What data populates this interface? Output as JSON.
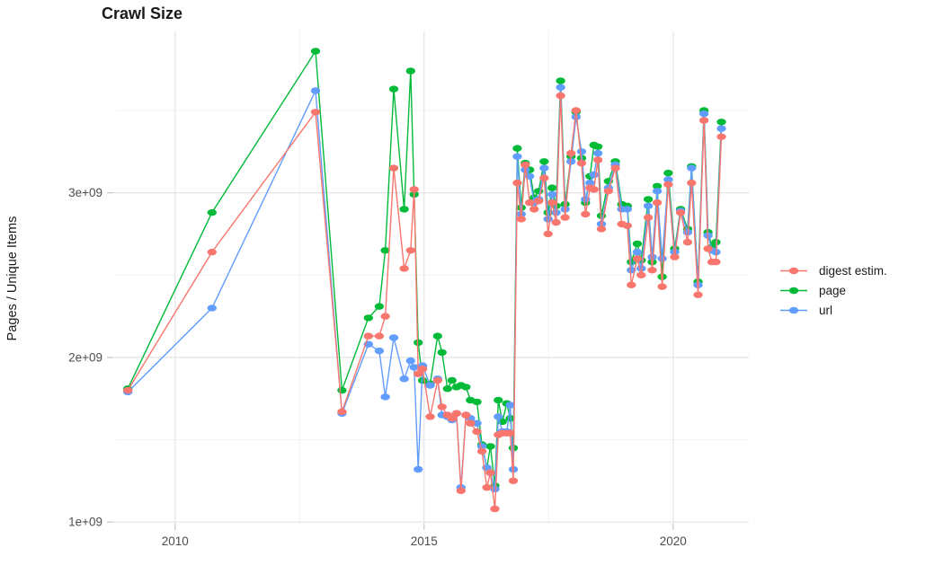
{
  "title": "Crawl Size",
  "axes": {
    "y_title": "Pages / Unique Items",
    "y_ticks": [
      {
        "label": "1e+09",
        "value": 1
      },
      {
        "label": "2e+09",
        "value": 2
      },
      {
        "label": "3e+09",
        "value": 3
      }
    ],
    "y_minor": [
      1.5,
      2.5,
      3.5
    ],
    "x_ticks": [
      {
        "label": "2010",
        "value": 2010
      },
      {
        "label": "2015",
        "value": 2015
      },
      {
        "label": "2020",
        "value": 2020
      }
    ],
    "x_minor": [
      2012.5,
      2017.5
    ]
  },
  "legend": {
    "items": [
      {
        "label": "digest estim.",
        "series": "digest"
      },
      {
        "label": "page",
        "series": "page"
      },
      {
        "label": "url",
        "series": "url"
      }
    ]
  },
  "colors": {
    "digest": "#F8766D",
    "page": "#00BA38",
    "url": "#619CFF",
    "grid_major": "#E4E4E4",
    "grid_minor": "#F0F0F0",
    "tick": "#C6C6C6",
    "tick_label": "#4D4D4D",
    "title": "#1A1A1A",
    "axis_title": "#1A1A1A",
    "background": "#FFFFFF"
  },
  "chart_data": {
    "type": "line",
    "title": "Crawl Size",
    "ylabel": "Pages / Unique Items",
    "value_unit": "billions of pages / unique items (1e9)",
    "xlim": [
      2008.83,
      2021.52
    ],
    "ylim_billions": [
      0.99,
      3.98
    ],
    "grid": "on",
    "legend_position": "right",
    "marker": "ellipse-point",
    "draw_order": [
      "page",
      "url",
      "digest"
    ],
    "x_years": [
      2009.05,
      2010.74,
      2012.82,
      2013.35,
      2013.88,
      2014.1,
      2014.22,
      2014.39,
      2014.6,
      2014.73,
      2014.8,
      2014.88,
      2014.97,
      2015.12,
      2015.27,
      2015.36,
      2015.47,
      2015.56,
      2015.65,
      2015.74,
      2015.84,
      2015.93,
      2016.06,
      2016.16,
      2016.26,
      2016.33,
      2016.42,
      2016.49,
      2016.57,
      2016.66,
      2016.73,
      2016.79,
      2016.87,
      2016.95,
      2017.03,
      2017.12,
      2017.21,
      2017.3,
      2017.41,
      2017.49,
      2017.57,
      2017.65,
      2017.74,
      2017.83,
      2017.95,
      2018.05,
      2018.16,
      2018.24,
      2018.33,
      2018.41,
      2018.49,
      2018.56,
      2018.7,
      2018.84,
      2018.97,
      2019.08,
      2019.16,
      2019.28,
      2019.36,
      2019.5,
      2019.58,
      2019.68,
      2019.78,
      2019.9,
      2020.03,
      2020.15,
      2020.29,
      2020.37,
      2020.5,
      2020.62,
      2020.7,
      2020.78,
      2020.86,
      2020.97
    ],
    "series": [
      {
        "name": "digest estim.",
        "key": "digest",
        "values_billions": [
          1.8,
          2.64,
          3.49,
          1.67,
          2.13,
          2.13,
          2.25,
          3.15,
          2.54,
          2.65,
          3.02,
          1.9,
          1.93,
          1.64,
          1.86,
          1.7,
          1.65,
          1.63,
          1.66,
          1.19,
          1.65,
          1.6,
          1.55,
          1.43,
          1.21,
          1.3,
          1.08,
          1.53,
          1.54,
          1.54,
          1.54,
          1.25,
          3.06,
          2.84,
          3.17,
          2.94,
          2.9,
          2.95,
          3.09,
          2.75,
          2.94,
          2.82,
          3.59,
          2.85,
          3.24,
          3.5,
          3.18,
          2.87,
          3.03,
          3.02,
          3.2,
          2.78,
          3.01,
          3.15,
          2.81,
          2.8,
          2.44,
          2.6,
          2.5,
          2.85,
          2.53,
          2.94,
          2.43,
          3.05,
          2.61,
          2.88,
          2.7,
          3.06,
          2.38,
          3.44,
          2.66,
          2.58,
          2.58,
          3.34
        ]
      },
      {
        "name": "page",
        "key": "page",
        "values_billions": [
          1.81,
          2.88,
          3.86,
          1.8,
          2.24,
          2.31,
          2.65,
          3.63,
          2.9,
          3.74,
          2.99,
          2.09,
          1.86,
          1.84,
          2.13,
          2.03,
          1.81,
          1.86,
          1.82,
          1.83,
          1.82,
          1.74,
          1.73,
          1.47,
          1.33,
          1.46,
          1.22,
          1.74,
          1.61,
          1.72,
          1.63,
          1.45,
          3.27,
          2.91,
          3.18,
          3.14,
          2.97,
          3.01,
          3.19,
          2.88,
          3.03,
          2.92,
          3.68,
          2.93,
          3.22,
          3.49,
          3.21,
          2.94,
          3.1,
          3.29,
          3.28,
          2.86,
          3.07,
          3.19,
          2.93,
          2.92,
          2.58,
          2.69,
          2.59,
          2.96,
          2.58,
          3.04,
          2.49,
          3.12,
          2.66,
          2.9,
          2.78,
          3.16,
          2.46,
          3.5,
          2.76,
          2.67,
          2.7,
          3.43
        ]
      },
      {
        "name": "url",
        "key": "url",
        "values_billions": [
          1.79,
          2.3,
          3.62,
          1.66,
          2.08,
          2.04,
          1.76,
          2.12,
          1.87,
          1.98,
          1.94,
          1.32,
          1.95,
          1.83,
          1.87,
          1.65,
          1.64,
          1.62,
          1.66,
          1.21,
          1.65,
          1.63,
          1.6,
          1.46,
          1.33,
          1.3,
          1.2,
          1.64,
          1.55,
          1.55,
          1.71,
          1.32,
          3.22,
          2.87,
          3.14,
          3.1,
          2.94,
          2.96,
          3.15,
          2.84,
          2.99,
          2.88,
          3.64,
          2.9,
          3.19,
          3.46,
          3.25,
          2.96,
          3.06,
          3.11,
          3.24,
          2.81,
          3.03,
          3.17,
          2.9,
          2.9,
          2.53,
          2.64,
          2.54,
          2.92,
          2.61,
          3.01,
          2.6,
          3.08,
          2.64,
          2.89,
          2.76,
          3.15,
          2.44,
          3.48,
          2.74,
          2.65,
          2.64,
          3.39
        ]
      }
    ]
  }
}
